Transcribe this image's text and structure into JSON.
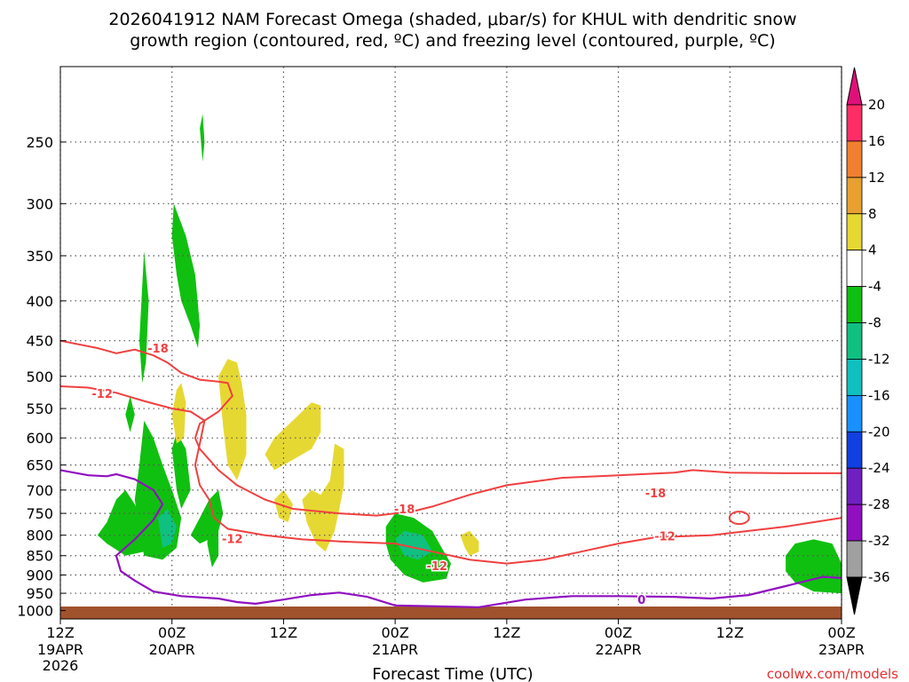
{
  "chart_data": {
    "type": "time-height cross section",
    "title_lines": [
      "2026041912 NAM Forecast Omega (shaded, μbar/s) for KHUL with dendritic snow",
      "growth region (contoured, red, ºC) and freezing level (contoured, purple, ºC)"
    ],
    "xlabel": "Forecast Time (UTC)",
    "credit": "coolwx.com/models",
    "x_ticks": [
      {
        "label": "12Z",
        "date": "19APR",
        "year": "2026"
      },
      {
        "label": "00Z",
        "date": "20APR",
        "year": ""
      },
      {
        "label": "12Z",
        "date": "",
        "year": ""
      },
      {
        "label": "00Z",
        "date": "21APR",
        "year": ""
      },
      {
        "label": "12Z",
        "date": "",
        "year": ""
      },
      {
        "label": "00Z",
        "date": "22APR",
        "year": ""
      },
      {
        "label": "12Z",
        "date": "",
        "year": ""
      },
      {
        "label": "00Z",
        "date": "23APR",
        "year": ""
      }
    ],
    "x_range_hours": [
      0,
      84
    ],
    "y_ticks": [
      250,
      300,
      350,
      400,
      450,
      500,
      550,
      600,
      650,
      700,
      750,
      800,
      850,
      900,
      950,
      1000
    ],
    "y_range_hpa": [
      200,
      1025
    ],
    "grid": true,
    "colorbar": {
      "labels": [
        "20",
        "16",
        "12",
        "8",
        "4",
        "-4",
        "-8",
        "-12",
        "-16",
        "-20",
        "-24",
        "-28",
        "-32",
        "-36"
      ],
      "colors": [
        "#ff2d66",
        "#f08030",
        "#e8a030",
        "#e6d833",
        "#ffffff",
        "#10c010",
        "#10c080",
        "#10c0c0",
        "#1890ff",
        "#1040e0",
        "#7020c0",
        "#9010c0",
        "#a0a0a0"
      ],
      "top_arrow_color": "#e0107a",
      "bottom_arrow_color": "#000000"
    },
    "contour_labels": [
      {
        "value": "-18",
        "color": "#f04040",
        "hour": 10.5,
        "p": 460
      },
      {
        "value": "-12",
        "color": "#f04040",
        "hour": 4.5,
        "p": 526
      },
      {
        "value": "-18",
        "color": "#f04040",
        "hour": 37,
        "p": 740
      },
      {
        "value": "-12",
        "color": "#f04040",
        "hour": 18.5,
        "p": 808
      },
      {
        "value": "-12",
        "color": "#f04040",
        "hour": 40.5,
        "p": 876
      },
      {
        "value": "-18",
        "color": "#f04040",
        "hour": 64,
        "p": 706
      },
      {
        "value": "-12",
        "color": "#f04040",
        "hour": 65,
        "p": 802
      },
      {
        "value": "0",
        "color": "#9010c0",
        "hour": 62.5,
        "p": 967
      }
    ],
    "red_contours": [
      [
        [
          0,
          450
        ],
        [
          4,
          460
        ],
        [
          6,
          467
        ],
        [
          8,
          462
        ],
        [
          10,
          470
        ],
        [
          11.5,
          480
        ],
        [
          13,
          495
        ],
        [
          15,
          505
        ],
        [
          17,
          508
        ],
        [
          18,
          510
        ],
        [
          18.5,
          530
        ],
        [
          17,
          555
        ],
        [
          15,
          575
        ],
        [
          14.5,
          600
        ],
        [
          15,
          620
        ],
        [
          17,
          660
        ],
        [
          19,
          690
        ],
        [
          22,
          720
        ],
        [
          25,
          740
        ],
        [
          30,
          750
        ],
        [
          34,
          755
        ],
        [
          36,
          750
        ],
        [
          38,
          745
        ],
        [
          40,
          735
        ],
        [
          44,
          710
        ],
        [
          48,
          690
        ],
        [
          54,
          675
        ],
        [
          60,
          670
        ],
        [
          66,
          665
        ],
        [
          68,
          660
        ],
        [
          72,
          665
        ],
        [
          78,
          666
        ],
        [
          84,
          666
        ]
      ],
      [
        [
          0,
          515
        ],
        [
          3,
          517
        ],
        [
          6,
          525
        ],
        [
          9,
          538
        ],
        [
          12,
          550
        ],
        [
          14,
          555
        ],
        [
          15.5,
          570
        ],
        [
          15,
          610
        ],
        [
          14.5,
          650
        ],
        [
          15,
          690
        ],
        [
          16,
          720
        ],
        [
          16.5,
          760
        ],
        [
          18,
          785
        ],
        [
          22,
          800
        ],
        [
          26,
          810
        ],
        [
          30,
          815
        ],
        [
          36,
          820
        ],
        [
          40,
          840
        ],
        [
          44,
          860
        ],
        [
          48,
          870
        ],
        [
          52,
          860
        ],
        [
          56,
          840
        ],
        [
          60,
          820
        ],
        [
          64,
          805
        ],
        [
          70,
          800
        ],
        [
          74,
          790
        ],
        [
          78,
          780
        ],
        [
          84,
          760
        ]
      ]
    ],
    "purple_contours": [
      [
        [
          0,
          660
        ],
        [
          3,
          670
        ],
        [
          5,
          672
        ],
        [
          6,
          668
        ],
        [
          8,
          678
        ],
        [
          10,
          700
        ],
        [
          11,
          730
        ],
        [
          10,
          765
        ],
        [
          8,
          810
        ],
        [
          6,
          850
        ],
        [
          6.5,
          890
        ],
        [
          8,
          915
        ],
        [
          10,
          945
        ],
        [
          13,
          958
        ],
        [
          17,
          965
        ],
        [
          19,
          975
        ],
        [
          21,
          980
        ],
        [
          24,
          968
        ],
        [
          27,
          955
        ],
        [
          30,
          948
        ],
        [
          33,
          960
        ],
        [
          36,
          985
        ],
        [
          45,
          990
        ],
        [
          50,
          968
        ],
        [
          55,
          958
        ],
        [
          60,
          958
        ],
        [
          66,
          960
        ],
        [
          70,
          965
        ],
        [
          74,
          955
        ],
        [
          78,
          930
        ],
        [
          82,
          905
        ],
        [
          84,
          908
        ]
      ]
    ],
    "omega_regions": [
      {
        "color": "#10c010",
        "points": [
          [
            4,
            800
          ],
          [
            5,
            770
          ],
          [
            6,
            720
          ],
          [
            7,
            700
          ],
          [
            8,
            730
          ],
          [
            9,
            780
          ],
          [
            9,
            840
          ],
          [
            7,
            850
          ],
          [
            5,
            820
          ]
        ]
      },
      {
        "color": "#10c010",
        "points": [
          [
            8,
            720
          ],
          [
            8.5,
            650
          ],
          [
            9,
            570
          ],
          [
            10,
            600
          ],
          [
            11,
            650
          ],
          [
            12,
            700
          ],
          [
            13,
            760
          ],
          [
            12.5,
            830
          ],
          [
            11,
            860
          ],
          [
            9,
            850
          ],
          [
            8.5,
            790
          ]
        ]
      },
      {
        "color": "#10c080",
        "points": [
          [
            10.5,
            760
          ],
          [
            11.5,
            740
          ],
          [
            12.5,
            780
          ],
          [
            12,
            820
          ],
          [
            11,
            830
          ]
        ]
      },
      {
        "color": "#10c010",
        "points": [
          [
            12,
            620
          ],
          [
            12.5,
            590
          ],
          [
            13.5,
            620
          ],
          [
            14,
            700
          ],
          [
            13,
            740
          ],
          [
            12.5,
            700
          ]
        ]
      },
      {
        "color": "#10c010",
        "points": [
          [
            14,
            800
          ],
          [
            15,
            760
          ],
          [
            16,
            720
          ],
          [
            17,
            700
          ],
          [
            17.5,
            750
          ],
          [
            17,
            790
          ],
          [
            16,
            810
          ],
          [
            15,
            820
          ]
        ]
      },
      {
        "color": "#10c010",
        "points": [
          [
            16,
            720
          ],
          [
            16.5,
            720
          ],
          [
            16.5,
            780
          ],
          [
            16,
            780
          ]
        ]
      },
      {
        "color": "#10c010",
        "points": [
          [
            7,
            560
          ],
          [
            7.5,
            530
          ],
          [
            8,
            560
          ],
          [
            7.5,
            590
          ]
        ]
      },
      {
        "color": "#10c010",
        "points": [
          [
            8.5,
            450
          ],
          [
            9,
            345
          ],
          [
            9.5,
            400
          ],
          [
            9.2,
            480
          ],
          [
            8.8,
            510
          ]
        ]
      },
      {
        "color": "#10c010",
        "points": [
          [
            12,
            330
          ],
          [
            12.2,
            300
          ],
          [
            13.5,
            330
          ],
          [
            14.5,
            370
          ],
          [
            15,
            430
          ],
          [
            14.8,
            460
          ],
          [
            14,
            430
          ],
          [
            13,
            400
          ],
          [
            12.5,
            370
          ]
        ]
      },
      {
        "color": "#10c010",
        "points": [
          [
            15,
            240
          ],
          [
            15.3,
            230
          ],
          [
            15.5,
            250
          ],
          [
            15.3,
            265
          ]
        ]
      },
      {
        "color": "#10c010",
        "points": [
          [
            16,
            745
          ],
          [
            17,
            730
          ],
          [
            17,
            850
          ],
          [
            16.3,
            880
          ],
          [
            15.8,
            820
          ]
        ]
      },
      {
        "color": "#e6d833",
        "points": [
          [
            12,
            560
          ],
          [
            12.5,
            520
          ],
          [
            13,
            510
          ],
          [
            13.5,
            540
          ],
          [
            13.3,
            600
          ],
          [
            12.5,
            610
          ]
        ]
      },
      {
        "color": "#e6d833",
        "points": [
          [
            17,
            500
          ],
          [
            18,
            475
          ],
          [
            19,
            480
          ],
          [
            19.5,
            510
          ],
          [
            20,
            560
          ],
          [
            20,
            630
          ],
          [
            19,
            680
          ],
          [
            18,
            650
          ],
          [
            17.5,
            580
          ]
        ]
      },
      {
        "color": "#e6d833",
        "points": [
          [
            22,
            630
          ],
          [
            23,
            600
          ],
          [
            25,
            570
          ],
          [
            27,
            540
          ],
          [
            28,
            545
          ],
          [
            28,
            590
          ],
          [
            27,
            620
          ],
          [
            25,
            640
          ],
          [
            23,
            660
          ]
        ]
      },
      {
        "color": "#e6d833",
        "points": [
          [
            23,
            720
          ],
          [
            24,
            700
          ],
          [
            25,
            730
          ],
          [
            24.5,
            770
          ],
          [
            23.5,
            760
          ]
        ]
      },
      {
        "color": "#e6d833",
        "points": [
          [
            26,
            720
          ],
          [
            27,
            700
          ],
          [
            28,
            710
          ],
          [
            29,
            680
          ],
          [
            29.5,
            610
          ],
          [
            30.5,
            620
          ],
          [
            30.5,
            690
          ],
          [
            30,
            740
          ],
          [
            29.5,
            790
          ],
          [
            28.5,
            840
          ],
          [
            27.5,
            820
          ],
          [
            26.5,
            770
          ]
        ]
      },
      {
        "color": "#10c010",
        "points": [
          [
            35,
            780
          ],
          [
            36,
            750
          ],
          [
            38,
            760
          ],
          [
            40,
            790
          ],
          [
            41,
            830
          ],
          [
            42,
            870
          ],
          [
            41.5,
            910
          ],
          [
            39,
            920
          ],
          [
            37,
            900
          ],
          [
            35.5,
            860
          ],
          [
            35,
            820
          ]
        ]
      },
      {
        "color": "#10c080",
        "points": [
          [
            36,
            810
          ],
          [
            37,
            790
          ],
          [
            39,
            800
          ],
          [
            40,
            840
          ],
          [
            38.5,
            860
          ],
          [
            37,
            850
          ]
        ]
      },
      {
        "color": "#e6d833",
        "points": [
          [
            43,
            800
          ],
          [
            44,
            790
          ],
          [
            45,
            815
          ],
          [
            45,
            840
          ],
          [
            44,
            850
          ],
          [
            43.5,
            830
          ]
        ]
      },
      {
        "color": "#10c010",
        "points": [
          [
            78,
            850
          ],
          [
            79,
            820
          ],
          [
            81,
            810
          ],
          [
            83,
            820
          ],
          [
            84,
            870
          ],
          [
            84,
            950
          ],
          [
            81,
            945
          ],
          [
            79,
            920
          ],
          [
            78,
            890
          ]
        ]
      }
    ]
  }
}
